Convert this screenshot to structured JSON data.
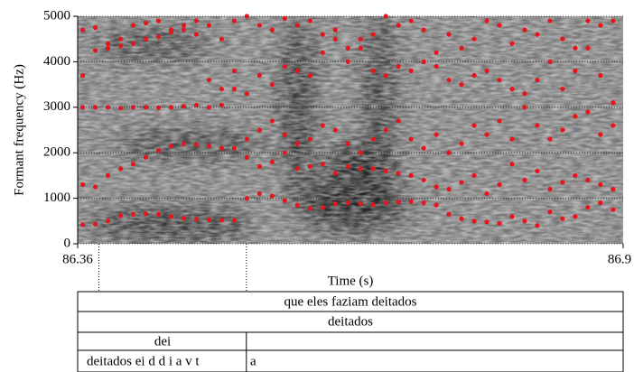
{
  "chart_data": {
    "type": "scatter",
    "y_label": "Formant frequency (Hz)",
    "x_label": "Time (s)",
    "xlim": [
      86.36,
      86.9
    ],
    "xticks": [
      86.36,
      86.9
    ],
    "ylim": [
      0,
      5000
    ],
    "yticks": [
      0,
      1000,
      2000,
      3000,
      4000,
      5000
    ],
    "grid": true,
    "boundaries": [
      86.381,
      86.527
    ],
    "x": [
      86.365,
      86.3775,
      86.39,
      86.4025,
      86.415,
      86.4275,
      86.44,
      86.4525,
      86.465,
      86.4775,
      86.49,
      86.5025,
      86.515,
      86.5275,
      86.54,
      86.5525,
      86.565,
      86.5775,
      86.59,
      86.6025,
      86.615,
      86.6275,
      86.64,
      86.6525,
      86.665,
      86.6775,
      86.69,
      86.7025,
      86.715,
      86.7275,
      86.74,
      86.7525,
      86.765,
      86.7775,
      86.79,
      86.8025,
      86.815,
      86.8275,
      86.84,
      86.8525,
      86.865,
      86.8775,
      86.89
    ],
    "series": [
      {
        "color": "#e8141b",
        "values": [
          420,
          430,
          500,
          620,
          650,
          660,
          650,
          600,
          560,
          540,
          530,
          520,
          520,
          1000,
          1100,
          1050,
          950,
          850,
          780,
          800,
          880,
          900,
          880,
          860,
          900,
          920,
          930,
          900,
          850,
          650,
          550,
          500,
          480,
          450,
          600,
          500,
          400,
          700,
          550,
          600,
          800,
          900,
          750
        ]
      },
      {
        "color": "#e8141b",
        "values": [
          1300,
          1250,
          1500,
          1650,
          1750,
          1900,
          2050,
          2150,
          2200,
          2180,
          2150,
          2100,
          2100,
          1900,
          1700,
          1800,
          2000,
          1650,
          1700,
          1750,
          1550,
          1700,
          1650,
          1650,
          1600,
          1550,
          1500,
          1400,
          1250,
          1200,
          1350,
          1500,
          1100,
          1300,
          1750,
          1400,
          1600,
          1200,
          1350,
          1500,
          1400,
          1300,
          1200
        ]
      },
      {
        "color": "#e8141b",
        "values": [
          3000,
          3000,
          3000,
          2980,
          3000,
          3000,
          2990,
          3000,
          3020,
          3050,
          3000,
          3050,
          3400,
          2300,
          2500,
          2700,
          2400,
          2200,
          2300,
          2600,
          2500,
          2200,
          2000,
          2300,
          2500,
          2700,
          2300,
          2100,
          2400,
          2000,
          2200,
          2600,
          2400,
          2700,
          2300,
          3000,
          2600,
          2300,
          2500,
          2800,
          2900,
          2400,
          2600
        ]
      },
      {
        "color": "#e8141b",
        "values": [
          3700,
          4250,
          4300,
          4350,
          4400,
          4500,
          4550,
          4650,
          4700,
          4600,
          3600,
          3400,
          3800,
          3300,
          3700,
          3500,
          3900,
          3800,
          3700,
          4200,
          4500,
          4000,
          4300,
          3800,
          3700,
          3900,
          3800,
          4000,
          3900,
          3600,
          3500,
          3700,
          3800,
          3600,
          3400,
          3300,
          3600,
          4000,
          3400,
          3800,
          4300,
          3700,
          3100
        ]
      },
      {
        "color": "#e8141b",
        "values": [
          4700,
          4750,
          4400,
          4500,
          4800,
          4850,
          4900,
          4700,
          4800,
          4900,
          4800,
          4500,
          4900,
          5000,
          4800,
          4700,
          4950,
          4800,
          4900,
          4600,
          4700,
          4300,
          4500,
          4600,
          5000,
          4800,
          4900,
          4700,
          4200,
          4600,
          4300,
          4500,
          4900,
          4800,
          4400,
          4700,
          4600,
          4900,
          4500,
          4300,
          4900,
          4800,
          4900
        ]
      }
    ]
  },
  "tiers": [
    {
      "intervals": [
        "que eles faziam deitados"
      ]
    },
    {
      "intervals": [
        "deitados"
      ]
    },
    {
      "intervals": [
        "dei"
      ]
    },
    {
      "intervals": [
        "deitados ei d d i a v t",
        "a"
      ]
    }
  ]
}
